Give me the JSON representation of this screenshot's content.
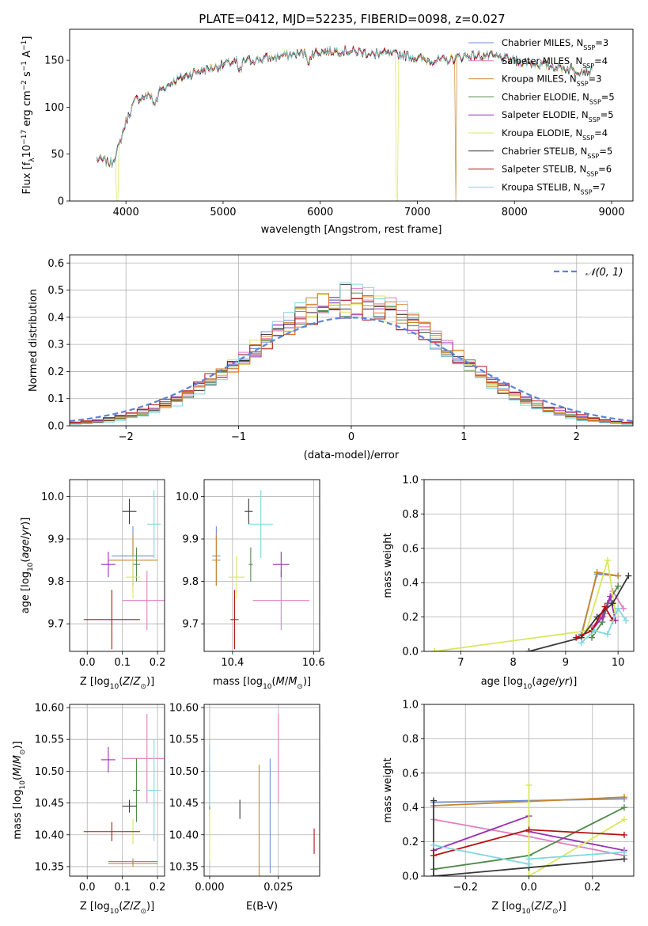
{
  "figure_title": "PLATE=0412, MJD=52235, FIBERID=0098, z=0.027",
  "colors": {
    "Chabrier MILES": "#6f8fd6",
    "Salpeter MILES": "#e07fbf",
    "Kroupa MILES": "#c8862a",
    "Chabrier ELODIE": "#4f8a4a",
    "Salpeter ELODIE": "#9b2fb3",
    "Kroupa ELODIE": "#d8e85a",
    "Chabrier STELIB": "#3a3a3a",
    "Salpeter STELIB": "#b31212",
    "Kroupa STELIB": "#7fd8e0",
    "extra_orange": "#e0782a",
    "normal_curve": "#5b84d6"
  },
  "chart_data": [
    {
      "id": "spectrum",
      "type": "line",
      "title": "PLATE=0412, MJD=52235, FIBERID=0098, z=0.027",
      "xlabel": "wavelength [Angstrom, rest frame]",
      "ylabel": "Flux [f_λ10^-17 erg cm^-2 s^-1 A^-1]",
      "xlim": [
        3420,
        9220
      ],
      "ylim": [
        0,
        183
      ],
      "xticks": [
        4000,
        5000,
        6000,
        7000,
        8000,
        9000
      ],
      "yticks": [
        0,
        50,
        100,
        150
      ],
      "legend_position": "top-right",
      "legend": [
        {
          "name": "Chabrier MILES",
          "nssp": "3"
        },
        {
          "name": "Salpeter MILES",
          "nssp": "4"
        },
        {
          "name": "Kroupa MILES",
          "nssp": "3"
        },
        {
          "name": "Chabrier ELODIE",
          "nssp": "5"
        },
        {
          "name": "Salpeter ELODIE",
          "nssp": "5"
        },
        {
          "name": "Kroupa ELODIE",
          "nssp": "4"
        },
        {
          "name": "Chabrier STELIB",
          "nssp": "5"
        },
        {
          "name": "Salpeter STELIB",
          "nssp": "6"
        },
        {
          "name": "Kroupa STELIB",
          "nssp": "7"
        }
      ],
      "continuum_anchors": {
        "x": [
          3700,
          3850,
          3920,
          4000,
          4100,
          4300,
          4500,
          4700,
          4900,
          5100,
          5300,
          5500,
          5700,
          5900,
          6100,
          6300,
          6500,
          6700,
          6900,
          7100,
          7300,
          7500,
          7700,
          8000,
          8300,
          8600,
          8800
        ],
        "y": [
          45,
          40,
          55,
          85,
          108,
          115,
          128,
          137,
          142,
          148,
          150,
          153,
          156,
          158,
          160,
          160,
          158,
          157,
          155,
          150,
          150,
          155,
          155,
          150,
          145,
          140,
          138
        ]
      },
      "dips": [
        {
          "series": "Kroupa ELODIE",
          "x": 3910,
          "to": 0
        },
        {
          "series": "Kroupa ELODIE",
          "x": 6790,
          "to": 0
        },
        {
          "series": "Kroupa MILES",
          "x": 7400,
          "to": 0
        }
      ]
    },
    {
      "id": "residuals",
      "type": "histogram",
      "xlabel": "(data-model)/error",
      "ylabel": "Normed distribution",
      "xlim": [
        -2.5,
        2.5
      ],
      "ylim": [
        0,
        0.63
      ],
      "xticks": [
        -2,
        -1,
        0,
        1,
        2
      ],
      "yticks": [
        0.0,
        0.1,
        0.2,
        0.3,
        0.4,
        0.5,
        0.6
      ],
      "grid": true,
      "legend": [
        {
          "name": "N(0,1)"
        }
      ],
      "legend_position": "top-right",
      "bin_width": 0.1,
      "normal_curve": {
        "mean": 0,
        "sigma": 1
      }
    },
    {
      "id": "age_vs_Z",
      "type": "errorbar",
      "xlabel": "Z [log10(Z/Z⊙)]",
      "ylabel": "age [log10(age/yr)]",
      "xlim": [
        -0.05,
        0.22
      ],
      "ylim": [
        9.635,
        10.04
      ],
      "xticks": [
        0.0,
        0.1,
        0.2
      ],
      "yticks": [
        9.7,
        9.8,
        9.9,
        10.0
      ],
      "grid": true,
      "points": [
        {
          "series": "Chabrier MILES",
          "x": 0.13,
          "xerr": 0.06,
          "y": 9.86,
          "yerr": 0.07
        },
        {
          "series": "Salpeter MILES",
          "x": 0.17,
          "xerr": 0.07,
          "y": 9.755,
          "yerr": 0.07
        },
        {
          "series": "Kroupa MILES",
          "x": 0.13,
          "xerr": 0.07,
          "y": 9.85,
          "yerr": 0.06
        },
        {
          "series": "Chabrier ELODIE",
          "x": 0.14,
          "xerr": 0.01,
          "y": 9.84,
          "yerr": 0.04
        },
        {
          "series": "Salpeter ELODIE",
          "x": 0.06,
          "xerr": 0.02,
          "y": 9.84,
          "yerr": 0.03
        },
        {
          "series": "Kroupa ELODIE",
          "x": 0.13,
          "xerr": 0.02,
          "y": 9.81,
          "yerr": 0.05
        },
        {
          "series": "Chabrier STELIB",
          "x": 0.12,
          "xerr": 0.02,
          "y": 9.965,
          "yerr": 0.03
        },
        {
          "series": "Salpeter STELIB",
          "x": 0.07,
          "xerr": 0.08,
          "y": 9.71,
          "yerr": 0.07
        },
        {
          "series": "Kroupa STELIB",
          "x": 0.19,
          "xerr": 0.02,
          "y": 9.935,
          "yerr": 0.08
        }
      ]
    },
    {
      "id": "age_vs_mass",
      "type": "errorbar",
      "xlabel": "mass [log10(M/M⊙)]",
      "ylabel": "",
      "xlim": [
        10.33,
        10.615
      ],
      "ylim": [
        9.635,
        10.04
      ],
      "xticks": [
        10.4,
        10.6
      ],
      "yticks": [
        9.7,
        9.8,
        9.9,
        10.0
      ],
      "grid": true,
      "points": [
        {
          "series": "Chabrier MILES",
          "x": 10.36,
          "xerr": 0.01,
          "y": 9.86,
          "yerr": 0.07
        },
        {
          "series": "Salpeter MILES",
          "x": 10.52,
          "xerr": 0.07,
          "y": 9.755,
          "yerr": 0.07
        },
        {
          "series": "Kroupa MILES",
          "x": 10.36,
          "xerr": 0.01,
          "y": 9.85,
          "yerr": 0.06
        },
        {
          "series": "Chabrier ELODIE",
          "x": 10.445,
          "xerr": 0.005,
          "y": 9.84,
          "yerr": 0.04
        },
        {
          "series": "Salpeter ELODIE",
          "x": 10.52,
          "xerr": 0.02,
          "y": 9.84,
          "yerr": 0.03
        },
        {
          "series": "Kroupa ELODIE",
          "x": 10.41,
          "xerr": 0.02,
          "y": 9.81,
          "yerr": 0.05
        },
        {
          "series": "Chabrier STELIB",
          "x": 10.44,
          "xerr": 0.01,
          "y": 9.965,
          "yerr": 0.03
        },
        {
          "series": "Salpeter STELIB",
          "x": 10.405,
          "xerr": 0.01,
          "y": 9.71,
          "yerr": 0.07
        },
        {
          "series": "Kroupa STELIB",
          "x": 10.47,
          "xerr": 0.03,
          "y": 9.935,
          "yerr": 0.08
        }
      ]
    },
    {
      "id": "weight_vs_age",
      "type": "line",
      "xlabel": "age [log10(age/yr)]",
      "ylabel": "mass weight",
      "xlim": [
        6.3,
        10.3
      ],
      "ylim": [
        0,
        1.0
      ],
      "xticks": [
        7,
        8,
        9,
        10
      ],
      "yticks": [
        0.0,
        0.2,
        0.4,
        0.6,
        0.8,
        1.0
      ],
      "grid": true,
      "series": [
        {
          "name": "Chabrier MILES",
          "points": [
            [
              9.3,
              0.1
            ],
            [
              9.6,
              0.45
            ],
            [
              10.0,
              0.44
            ]
          ]
        },
        {
          "name": "Salpeter MILES",
          "points": [
            [
              9.5,
              0.14
            ],
            [
              9.75,
              0.22
            ],
            [
              9.9,
              0.35
            ],
            [
              10.1,
              0.25
            ]
          ]
        },
        {
          "name": "Kroupa MILES",
          "points": [
            [
              9.3,
              0.09
            ],
            [
              9.6,
              0.46
            ],
            [
              10.0,
              0.44
            ]
          ]
        },
        {
          "name": "Chabrier ELODIE",
          "points": [
            [
              9.5,
              0.08
            ],
            [
              9.7,
              0.17
            ],
            [
              9.8,
              0.28
            ],
            [
              10.0,
              0.38
            ]
          ]
        },
        {
          "name": "Salpeter ELODIE",
          "points": [
            [
              9.5,
              0.12
            ],
            [
              9.7,
              0.2
            ],
            [
              9.85,
              0.32
            ],
            [
              9.95,
              0.18
            ]
          ]
        },
        {
          "name": "Kroupa ELODIE",
          "points": [
            [
              6.5,
              0.0
            ],
            [
              9.4,
              0.12
            ],
            [
              9.8,
              0.53
            ],
            [
              9.95,
              0.22
            ]
          ]
        },
        {
          "name": "Chabrier STELIB",
          "points": [
            [
              8.3,
              0.0
            ],
            [
              9.3,
              0.08
            ],
            [
              9.6,
              0.2
            ],
            [
              9.9,
              0.28
            ],
            [
              10.2,
              0.44
            ]
          ]
        },
        {
          "name": "Salpeter STELIB",
          "points": [
            [
              9.2,
              0.08
            ],
            [
              9.5,
              0.12
            ],
            [
              9.75,
              0.26
            ],
            [
              9.9,
              0.18
            ]
          ]
        },
        {
          "name": "Kroupa STELIB",
          "points": [
            [
              9.3,
              0.05
            ],
            [
              9.55,
              0.12
            ],
            [
              9.8,
              0.1
            ],
            [
              10.0,
              0.25
            ],
            [
              10.15,
              0.18
            ]
          ]
        }
      ]
    },
    {
      "id": "mass_vs_Z",
      "type": "errorbar",
      "xlabel": "Z [log10(Z/Z⊙)]",
      "ylabel": "mass [log10(M/M⊙)]",
      "xlim": [
        -0.05,
        0.22
      ],
      "ylim": [
        10.335,
        10.605
      ],
      "xticks": [
        0.0,
        0.1,
        0.2
      ],
      "yticks": [
        10.35,
        10.4,
        10.45,
        10.5,
        10.55,
        10.6
      ],
      "grid": true,
      "points": [
        {
          "series": "Chabrier MILES",
          "x": 0.13,
          "xerr": 0.07,
          "y": 10.358,
          "yerr": 0.005
        },
        {
          "series": "Salpeter MILES",
          "x": 0.17,
          "xerr": 0.07,
          "y": 10.52,
          "yerr": 0.07
        },
        {
          "series": "Kroupa MILES",
          "x": 0.13,
          "xerr": 0.07,
          "y": 10.355,
          "yerr": 0.005
        },
        {
          "series": "Chabrier ELODIE",
          "x": 0.14,
          "xerr": 0.01,
          "y": 10.47,
          "yerr": 0.05
        },
        {
          "series": "Salpeter ELODIE",
          "x": 0.06,
          "xerr": 0.02,
          "y": 10.518,
          "yerr": 0.02
        },
        {
          "series": "Kroupa ELODIE",
          "x": 0.13,
          "xerr": 0.02,
          "y": 10.405,
          "yerr": 0.02
        },
        {
          "series": "Chabrier STELIB",
          "x": 0.12,
          "xerr": 0.02,
          "y": 10.445,
          "yerr": 0.01
        },
        {
          "series": "Salpeter STELIB",
          "x": 0.07,
          "xerr": 0.08,
          "y": 10.405,
          "yerr": 0.015
        },
        {
          "series": "Kroupa STELIB",
          "x": 0.19,
          "xerr": 0.02,
          "y": 10.47,
          "yerr": 0.08
        }
      ]
    },
    {
      "id": "mass_vs_ebv",
      "type": "errorbar",
      "xlabel": "E(B-V)",
      "ylabel": "",
      "xlim": [
        -0.002,
        0.04
      ],
      "ylim": [
        10.335,
        10.605
      ],
      "xticks": [
        0.0,
        0.025
      ],
      "yticks": [
        10.35,
        10.4,
        10.45,
        10.5,
        10.55,
        10.6
      ],
      "grid": true,
      "points": [
        {
          "series": "Chabrier MILES",
          "x": 0.022,
          "xerr": 0,
          "y": 10.43,
          "yerr": 0.09
        },
        {
          "series": "Salpeter MILES",
          "x": 0.025,
          "xerr": 0,
          "y": 10.52,
          "yerr": 0.07
        },
        {
          "series": "Kroupa MILES",
          "x": 0.018,
          "xerr": 0,
          "y": 10.41,
          "yerr": 0.1
        },
        {
          "series": "Chabrier ELODIE",
          "x": 0.0,
          "xerr": 0,
          "y": 10.47,
          "yerr": 0.04
        },
        {
          "series": "Salpeter ELODIE",
          "x": 0.0,
          "xerr": 0,
          "y": 10.52,
          "yerr": 0.02
        },
        {
          "series": "Kroupa ELODIE",
          "x": 0.0,
          "xerr": 0,
          "y": 10.4,
          "yerr": 0.04
        },
        {
          "series": "Chabrier STELIB",
          "x": 0.011,
          "xerr": 0,
          "y": 10.44,
          "yerr": 0.015
        },
        {
          "series": "Salpeter STELIB",
          "x": 0.038,
          "xerr": 0,
          "y": 10.39,
          "yerr": 0.02
        },
        {
          "series": "Kroupa STELIB",
          "x": 0.0,
          "xerr": 0,
          "y": 10.495,
          "yerr": 0.05
        }
      ]
    },
    {
      "id": "weight_vs_Z",
      "type": "line",
      "xlabel": "Z [log10(Z/Z⊙)]",
      "ylabel": "mass weight",
      "xlim": [
        -0.33,
        0.33
      ],
      "ylim": [
        0,
        1.0
      ],
      "xticks": [
        -0.2,
        0.0,
        0.2
      ],
      "yticks": [
        0.0,
        0.2,
        0.4,
        0.6,
        0.8,
        1.0
      ],
      "grid": true,
      "series": [
        {
          "name": "Chabrier MILES",
          "points": [
            [
              -0.3,
              0.43
            ],
            [
              0.3,
              0.45
            ]
          ]
        },
        {
          "name": "Salpeter MILES",
          "points": [
            [
              -0.3,
              0.33
            ],
            [
              0.0,
              0.23
            ],
            [
              0.3,
              0.12
            ]
          ]
        },
        {
          "name": "Kroupa MILES",
          "points": [
            [
              -0.3,
              0.41
            ],
            [
              0.3,
              0.46
            ]
          ]
        },
        {
          "name": "Chabrier ELODIE",
          "points": [
            [
              -0.3,
              0.04
            ],
            [
              0.0,
              0.12
            ],
            [
              0.3,
              0.4
            ]
          ]
        },
        {
          "name": "Salpeter ELODIE",
          "points": [
            [
              -0.3,
              0.15
            ],
            [
              0.0,
              0.35
            ],
            [
              0.0,
              0.26
            ],
            [
              0.3,
              0.15
            ]
          ]
        },
        {
          "name": "Kroupa ELODIE",
          "points": [
            [
              0.0,
              0.53
            ],
            [
              0.0,
              0.0
            ],
            [
              0.3,
              0.33
            ]
          ]
        },
        {
          "name": "Chabrier STELIB",
          "points": [
            [
              -0.3,
              0.44
            ],
            [
              -0.3,
              0.0
            ],
            [
              0.0,
              0.05
            ],
            [
              0.3,
              0.1
            ]
          ]
        },
        {
          "name": "Salpeter STELIB",
          "points": [
            [
              -0.3,
              0.12
            ],
            [
              0.0,
              0.27
            ],
            [
              0.3,
              0.24
            ]
          ]
        },
        {
          "name": "Kroupa STELIB",
          "points": [
            [
              -0.3,
              0.18
            ],
            [
              0.0,
              0.07
            ],
            [
              0.0,
              0.1
            ],
            [
              0.3,
              0.14
            ]
          ]
        }
      ]
    }
  ]
}
